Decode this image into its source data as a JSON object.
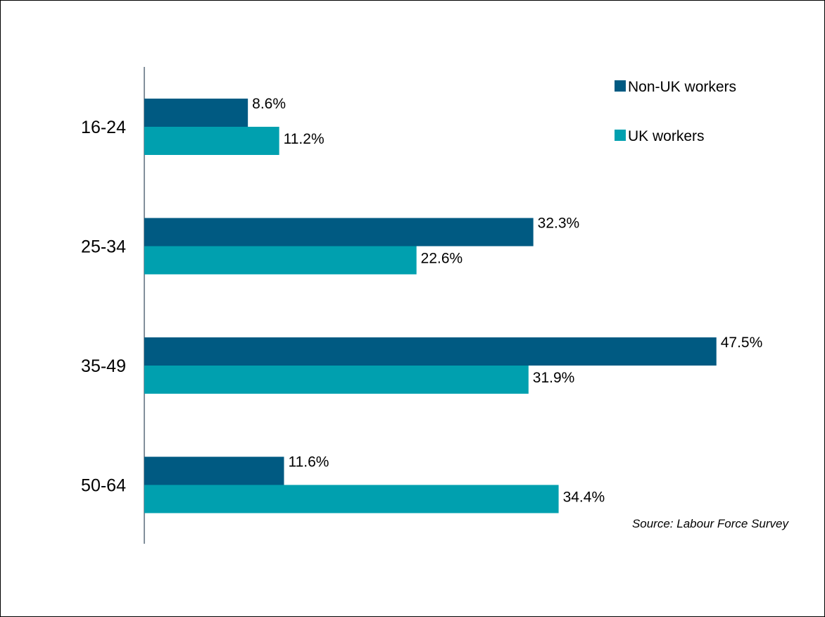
{
  "chart_data": {
    "type": "bar",
    "orientation": "horizontal",
    "categories": [
      "16-24",
      "25-34",
      "35-49",
      "50-64"
    ],
    "series": [
      {
        "name": "Non-UK workers",
        "color": "#005A82",
        "values": [
          8.6,
          32.3,
          47.5,
          11.6
        ],
        "labels": [
          "8.6%",
          "32.3%",
          "47.5%",
          "11.6%"
        ]
      },
      {
        "name": "UK workers",
        "color": "#00A0AF",
        "values": [
          11.2,
          22.6,
          31.9,
          34.4
        ],
        "labels": [
          "11.2%",
          "22.6%",
          "31.9%",
          "34.4%"
        ]
      }
    ],
    "xlim": [
      0,
      55
    ],
    "grid": false,
    "legend_position": "top-right",
    "source": "Source: Labour Force Survey"
  }
}
